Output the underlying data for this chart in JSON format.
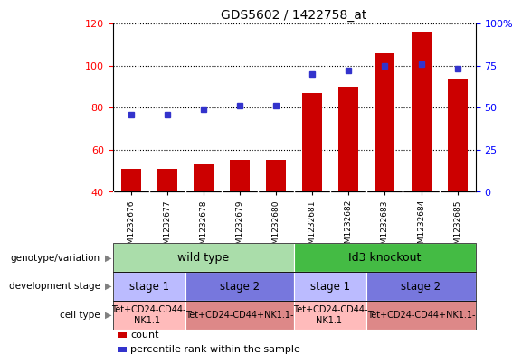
{
  "title": "GDS5602 / 1422758_at",
  "samples": [
    "GSM1232676",
    "GSM1232677",
    "GSM1232678",
    "GSM1232679",
    "GSM1232680",
    "GSM1232681",
    "GSM1232682",
    "GSM1232683",
    "GSM1232684",
    "GSM1232685"
  ],
  "counts": [
    51,
    51,
    53,
    55,
    55,
    87,
    90,
    106,
    116,
    94
  ],
  "percentiles": [
    46,
    46,
    49,
    51,
    51,
    70,
    72,
    75,
    76,
    73
  ],
  "ylim_left": [
    40,
    120
  ],
  "ylim_right": [
    0,
    100
  ],
  "yticks_left": [
    40,
    60,
    80,
    100,
    120
  ],
  "ytick_labels_left": [
    "40",
    "60",
    "80",
    "100",
    "120"
  ],
  "yticks_right": [
    0,
    25,
    50,
    75,
    100
  ],
  "ytick_labels_right": [
    "0",
    "25",
    "50",
    "75",
    "100%"
  ],
  "bar_color": "#cc0000",
  "dot_color": "#3333cc",
  "plot_bg": "#ffffff",
  "xticklabel_bg": "#d8d8d8",
  "genotype_groups": [
    {
      "text": "wild type",
      "start": 0,
      "end": 5,
      "color": "#aaddaa"
    },
    {
      "text": "Id3 knockout",
      "start": 5,
      "end": 10,
      "color": "#44bb44"
    }
  ],
  "stage_groups": [
    {
      "text": "stage 1",
      "start": 0,
      "end": 2,
      "color": "#bbbbff"
    },
    {
      "text": "stage 2",
      "start": 2,
      "end": 5,
      "color": "#7777dd"
    },
    {
      "text": "stage 1",
      "start": 5,
      "end": 7,
      "color": "#bbbbff"
    },
    {
      "text": "stage 2",
      "start": 7,
      "end": 10,
      "color": "#7777dd"
    }
  ],
  "celltype_groups": [
    {
      "text": "Tet+CD24-CD44-\nNK1.1-",
      "start": 0,
      "end": 2,
      "color": "#ffbbbb"
    },
    {
      "text": "Tet+CD24-CD44+NK1.1-",
      "start": 2,
      "end": 5,
      "color": "#dd8888"
    },
    {
      "text": "Tet+CD24-CD44-\nNK1.1-",
      "start": 5,
      "end": 7,
      "color": "#ffbbbb"
    },
    {
      "text": "Tet+CD24-CD44+NK1.1-",
      "start": 7,
      "end": 10,
      "color": "#dd8888"
    }
  ],
  "row_labels": [
    "genotype/variation",
    "development stage",
    "cell type"
  ],
  "legend_items": [
    {
      "label": "count",
      "color": "#cc0000"
    },
    {
      "label": "percentile rank within the sample",
      "color": "#3333cc"
    }
  ]
}
